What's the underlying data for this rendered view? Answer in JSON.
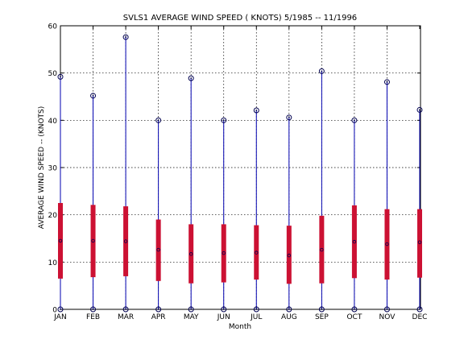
{
  "chart_data": {
    "type": "box",
    "title": "SVLS1  AVERAGE WIND SPEED ( KNOTS) 5/1985 -- 11/1996",
    "xlabel": "Month",
    "ylabel": "AVERAGE WIND SPEED -- (KNOTS)",
    "ylim": [
      0,
      60
    ],
    "yticks": [
      0,
      10,
      20,
      30,
      40,
      50,
      60
    ],
    "grid": true,
    "categories": [
      "JAN",
      "FEB",
      "MAR",
      "APR",
      "MAY",
      "JUN",
      "JUL",
      "AUG",
      "SEP",
      "OCT",
      "NOV",
      "DEC"
    ],
    "series": [
      {
        "min": [
          0,
          0,
          0,
          0,
          0,
          0,
          0,
          0,
          0,
          0,
          0,
          0
        ],
        "q1": [
          6.5,
          6.8,
          7.0,
          6.0,
          5.5,
          5.7,
          6.3,
          5.4,
          5.5,
          6.6,
          6.3,
          6.7
        ],
        "median": [
          14.5,
          14.5,
          14.4,
          12.6,
          11.7,
          11.9,
          12.0,
          11.4,
          12.6,
          14.3,
          13.8,
          14.2
        ],
        "q3": [
          22.5,
          22.1,
          21.8,
          19.0,
          18.0,
          18.0,
          17.8,
          17.7,
          19.8,
          22.0,
          21.2,
          21.2
        ],
        "max": [
          49.2,
          45.2,
          57.6,
          40.0,
          48.9,
          40.0,
          42.1,
          40.6,
          50.4,
          40.0,
          48.1,
          42.2
        ]
      }
    ],
    "colors": {
      "whisker": "#0000b0",
      "box": "#cc1133",
      "marker": "#000050",
      "grid": "#000000"
    }
  }
}
